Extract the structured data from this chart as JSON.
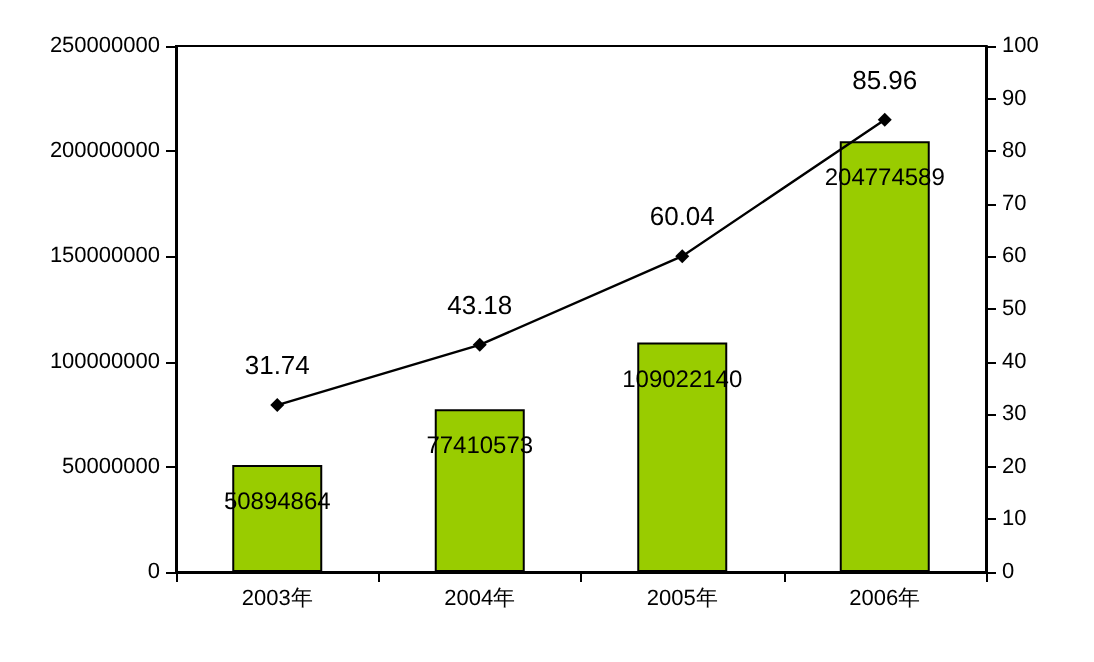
{
  "chart_data": {
    "type": "bar",
    "categories": [
      "2003年",
      "2004年",
      "2005年",
      "2006年"
    ],
    "series": [
      {
        "color": "#99cc00",
        "values": [
          50894864,
          77410573,
          109022140,
          204774589
        ]
      },
      {
        "type": "line",
        "color": "#000000",
        "axis": "y2",
        "values": [
          31.74,
          43.18,
          60.04,
          85.96
        ]
      }
    ],
    "ylim": [
      0,
      250000000
    ],
    "yticks": [
      0,
      50000000,
      100000000,
      150000000,
      200000000,
      250000000
    ],
    "y2lim": [
      0,
      100
    ],
    "y2ticks": [
      0,
      10,
      20,
      30,
      40,
      50,
      60,
      70,
      80,
      90,
      100
    ],
    "marker": "diamond",
    "data_labels": true
  }
}
